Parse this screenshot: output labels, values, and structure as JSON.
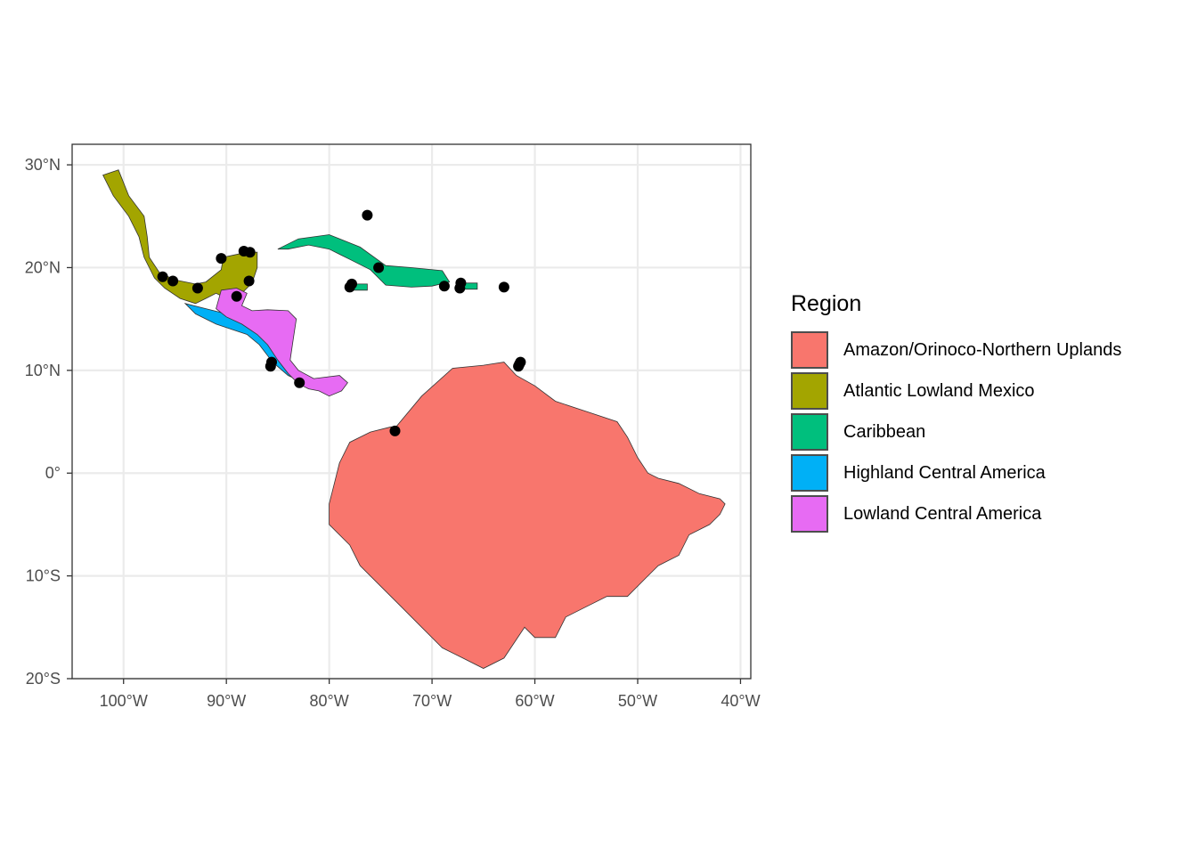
{
  "map": {
    "legend_title": "Region",
    "x_ticks": [
      {
        "value": -100,
        "label": "100°W"
      },
      {
        "value": -90,
        "label": "90°W"
      },
      {
        "value": -80,
        "label": "80°W"
      },
      {
        "value": -70,
        "label": "70°W"
      },
      {
        "value": -60,
        "label": "60°W"
      },
      {
        "value": -50,
        "label": "50°W"
      },
      {
        "value": -40,
        "label": "40°W"
      }
    ],
    "y_ticks": [
      {
        "value": 30,
        "label": "30°N"
      },
      {
        "value": 20,
        "label": "20°N"
      },
      {
        "value": 10,
        "label": "10°N"
      },
      {
        "value": 0,
        "label": "0°"
      },
      {
        "value": -10,
        "label": "10°S"
      },
      {
        "value": -20,
        "label": "20°S"
      }
    ],
    "lon_range": [
      -105,
      -39
    ],
    "lat_range": [
      -20,
      32
    ],
    "regions": [
      {
        "name": "Amazon/Orinoco-Northern Uplands",
        "color": "#F8766D"
      },
      {
        "name": "Atlantic Lowland Mexico",
        "color": "#A3A500"
      },
      {
        "name": "Caribbean",
        "color": "#00BF7D"
      },
      {
        "name": "Highland Central America",
        "color": "#00B0F6"
      },
      {
        "name": "Lowland Central America",
        "color": "#E76BF3"
      }
    ],
    "region_shapes": [
      {
        "region": "Amazon/Orinoco-Northern Uplands",
        "coords": [
          [
            -73.5,
            4.5
          ],
          [
            -71,
            7.5
          ],
          [
            -68,
            10.2
          ],
          [
            -65,
            10.5
          ],
          [
            -63,
            10.8
          ],
          [
            -61.8,
            9.5
          ],
          [
            -60,
            8.5
          ],
          [
            -58,
            7
          ],
          [
            -55,
            6
          ],
          [
            -52,
            5
          ],
          [
            -51,
            3.5
          ],
          [
            -50,
            1.5
          ],
          [
            -49,
            0
          ],
          [
            -48,
            -0.5
          ],
          [
            -46,
            -1
          ],
          [
            -44,
            -2
          ],
          [
            -42,
            -2.5
          ],
          [
            -41.5,
            -3
          ],
          [
            -42,
            -4
          ],
          [
            -43,
            -5
          ],
          [
            -45,
            -6
          ],
          [
            -46,
            -8
          ],
          [
            -48,
            -9
          ],
          [
            -49,
            -10
          ],
          [
            -51,
            -12
          ],
          [
            -53,
            -12
          ],
          [
            -55,
            -13
          ],
          [
            -57,
            -14
          ],
          [
            -58,
            -16
          ],
          [
            -60,
            -16
          ],
          [
            -61,
            -15
          ],
          [
            -63,
            -18
          ],
          [
            -65,
            -19
          ],
          [
            -67,
            -18
          ],
          [
            -69,
            -17
          ],
          [
            -71,
            -15
          ],
          [
            -73,
            -13
          ],
          [
            -75,
            -11
          ],
          [
            -77,
            -9
          ],
          [
            -78,
            -7
          ],
          [
            -80,
            -5
          ],
          [
            -80,
            -3
          ],
          [
            -79.5,
            -1
          ],
          [
            -79,
            1
          ],
          [
            -78,
            3
          ],
          [
            -76,
            4
          ],
          [
            -74,
            4.5
          ]
        ]
      },
      {
        "region": "Atlantic Lowland Mexico",
        "coords": [
          [
            -102,
            29
          ],
          [
            -100.5,
            29.5
          ],
          [
            -99.5,
            27
          ],
          [
            -98,
            25
          ],
          [
            -97.7,
            23
          ],
          [
            -97.5,
            21
          ],
          [
            -96.5,
            19.5
          ],
          [
            -95,
            18.8
          ],
          [
            -93,
            18.4
          ],
          [
            -92,
            18.6
          ],
          [
            -90.5,
            19.8
          ],
          [
            -90.3,
            21
          ],
          [
            -88,
            21.5
          ],
          [
            -87,
            21.5
          ],
          [
            -87,
            20
          ],
          [
            -87.5,
            18.5
          ],
          [
            -88.5,
            17.5
          ],
          [
            -90,
            17
          ],
          [
            -91,
            17.5
          ],
          [
            -92,
            17
          ],
          [
            -93,
            16.5
          ],
          [
            -94.5,
            17
          ],
          [
            -96,
            18
          ],
          [
            -97,
            19
          ],
          [
            -98,
            21
          ],
          [
            -98.5,
            23
          ],
          [
            -99.5,
            25
          ],
          [
            -101,
            27
          ]
        ]
      },
      {
        "region": "Caribbean",
        "coords": [
          [
            -85,
            21.8
          ],
          [
            -83,
            22.8
          ],
          [
            -80,
            23.2
          ],
          [
            -77,
            22
          ],
          [
            -74.5,
            20.2
          ],
          [
            -72,
            20
          ],
          [
            -69,
            19.7
          ],
          [
            -68.3,
            18.6
          ],
          [
            -70,
            18.2
          ],
          [
            -72,
            18.1
          ],
          [
            -74.5,
            18.3
          ],
          [
            -76,
            19.8
          ],
          [
            -78,
            20.8
          ],
          [
            -80,
            21.8
          ],
          [
            -82,
            22.2
          ],
          [
            -84,
            21.8
          ]
        ]
      },
      {
        "region": "Caribbean",
        "coords": [
          [
            -78.3,
            18.4
          ],
          [
            -76.3,
            18.4
          ],
          [
            -76.3,
            17.8
          ],
          [
            -78.3,
            17.8
          ]
        ]
      },
      {
        "region": "Caribbean",
        "coords": [
          [
            -67.3,
            18.5
          ],
          [
            -65.6,
            18.5
          ],
          [
            -65.6,
            17.9
          ],
          [
            -67.3,
            17.9
          ]
        ]
      },
      {
        "region": "Highland Central America",
        "coords": [
          [
            -94,
            16.5
          ],
          [
            -92,
            16
          ],
          [
            -90,
            15.5
          ],
          [
            -88,
            15
          ],
          [
            -87,
            14
          ],
          [
            -86,
            12.8
          ],
          [
            -85,
            11.5
          ],
          [
            -84,
            10
          ],
          [
            -83,
            9
          ],
          [
            -82,
            8.2
          ],
          [
            -82.5,
            8.8
          ],
          [
            -84,
            9.5
          ],
          [
            -85.5,
            10.8
          ],
          [
            -86.8,
            12.5
          ],
          [
            -88,
            13.5
          ],
          [
            -89.5,
            14
          ],
          [
            -91,
            14.5
          ],
          [
            -93,
            15.5
          ]
        ]
      },
      {
        "region": "Lowland Central America",
        "coords": [
          [
            -90.5,
            17.8
          ],
          [
            -89,
            18
          ],
          [
            -88,
            17.5
          ],
          [
            -88.5,
            16.3
          ],
          [
            -87.5,
            15.8
          ],
          [
            -86,
            15.9
          ],
          [
            -84,
            15.8
          ],
          [
            -83.2,
            15
          ],
          [
            -83.5,
            13
          ],
          [
            -83.8,
            11
          ],
          [
            -83,
            10
          ],
          [
            -81.5,
            9.2
          ],
          [
            -79,
            9.5
          ],
          [
            -78.2,
            8.8
          ],
          [
            -78.8,
            8
          ],
          [
            -80,
            7.5
          ],
          [
            -81,
            8
          ],
          [
            -82,
            8.2
          ],
          [
            -83,
            8.7
          ],
          [
            -84,
            9.7
          ],
          [
            -85,
            11
          ],
          [
            -86,
            12.5
          ],
          [
            -87,
            13.5
          ],
          [
            -88.5,
            14.5
          ],
          [
            -90,
            15.2
          ],
          [
            -91,
            16
          ]
        ]
      }
    ],
    "occurrences": [
      [
        -76.3,
        25.1
      ],
      [
        -75.2,
        20
      ],
      [
        -77.8,
        18.4
      ],
      [
        -78,
        18.1
      ],
      [
        -68.8,
        18.2
      ],
      [
        -67.2,
        18.5
      ],
      [
        -67.3,
        18
      ],
      [
        -63,
        18.1
      ],
      [
        -61.5,
        10.6
      ],
      [
        -61.4,
        10.8
      ],
      [
        -61.6,
        10.4
      ],
      [
        -73.6,
        4.1
      ],
      [
        -88.3,
        21.6
      ],
      [
        -87.7,
        21.5
      ],
      [
        -90.5,
        20.9
      ],
      [
        -96.2,
        19.1
      ],
      [
        -95.2,
        18.7
      ],
      [
        -92.8,
        18
      ],
      [
        -87.8,
        18.7
      ],
      [
        -89,
        17.2
      ],
      [
        -85.6,
        10.8
      ],
      [
        -85.7,
        10.4
      ],
      [
        -82.9,
        8.8
      ]
    ]
  }
}
